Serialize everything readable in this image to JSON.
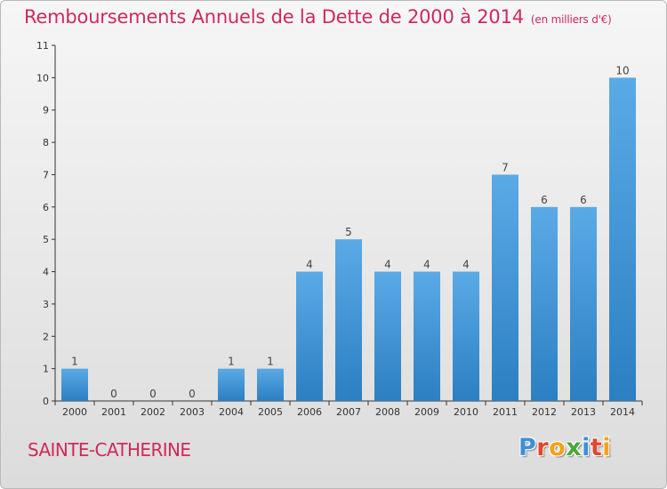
{
  "header": {
    "title": "Remboursements Annuels de la Dette de 2000 à 2014",
    "subtitle": "(en milliers d'€)"
  },
  "footer": {
    "commune": "SAINTE-CATHERINE",
    "logo_text": "Proxiti"
  },
  "colors": {
    "title": "#d0295a",
    "bar_light": "#5aaae6",
    "bar_dark": "#2b7fc2",
    "logo_letters": [
      "#3f8fd6",
      "#e2472b",
      "#f3a21a",
      "#49a83a",
      "#3f8fd6",
      "#e2472b",
      "#f3a21a"
    ]
  },
  "chart_data": {
    "type": "bar",
    "title": "Remboursements Annuels de la Dette de 2000 à 2014",
    "subtitle": "(en milliers d'€)",
    "categories": [
      "2000",
      "2001",
      "2002",
      "2003",
      "2004",
      "2005",
      "2006",
      "2007",
      "2008",
      "2009",
      "2010",
      "2011",
      "2012",
      "2013",
      "2014"
    ],
    "values": [
      1,
      0,
      0,
      0,
      1,
      1,
      4,
      5,
      4,
      4,
      4,
      7,
      6,
      6,
      10
    ],
    "ylim": [
      0,
      11
    ],
    "yticks": [
      0,
      1,
      2,
      3,
      4,
      5,
      6,
      7,
      8,
      9,
      10,
      11
    ],
    "grid": false,
    "data_labels": true
  }
}
